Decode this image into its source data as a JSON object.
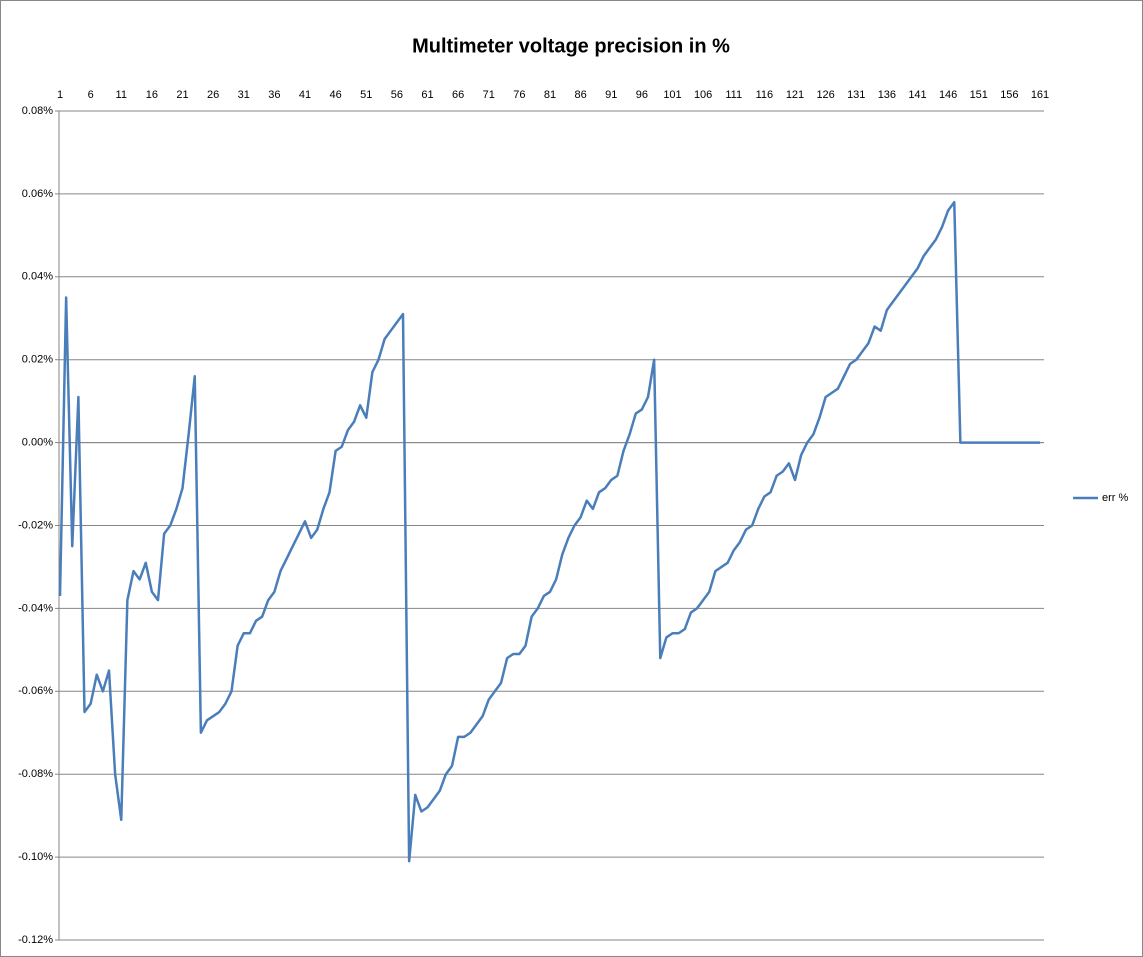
{
  "chart_data": {
    "type": "line",
    "title": "Multimeter voltage precision in %",
    "categories": [
      "1",
      null,
      null,
      null,
      null,
      "6",
      null,
      null,
      null,
      null,
      "11",
      null,
      null,
      null,
      null,
      "16",
      null,
      null,
      null,
      null,
      "21",
      null,
      null,
      null,
      null,
      "26",
      null,
      null,
      null,
      null,
      "31",
      null,
      null,
      null,
      null,
      "36",
      null,
      null,
      null,
      null,
      "41",
      null,
      null,
      null,
      null,
      "46",
      null,
      null,
      null,
      null,
      "51",
      null,
      null,
      null,
      null,
      "56",
      null,
      null,
      null,
      null,
      "61",
      null,
      null,
      null,
      null,
      "66",
      null,
      null,
      null,
      null,
      "71",
      null,
      null,
      null,
      null,
      "76",
      null,
      null,
      null,
      null,
      "81",
      null,
      null,
      null,
      null,
      "86",
      null,
      null,
      null,
      null,
      "91",
      null,
      null,
      null,
      null,
      "96",
      null,
      null,
      null,
      null,
      "101",
      null,
      null,
      null,
      null,
      "106",
      null,
      null,
      null,
      null,
      "111",
      null,
      null,
      null,
      null,
      "116",
      null,
      null,
      null,
      null,
      "121",
      null,
      null,
      null,
      null,
      "126",
      null,
      null,
      null,
      null,
      "131",
      null,
      null,
      null,
      null,
      "136",
      null,
      null,
      null,
      null,
      "141",
      null,
      null,
      null,
      null,
      "146",
      null,
      null,
      null,
      null,
      "151",
      null,
      null,
      null,
      null,
      "156",
      null,
      null,
      null,
      null,
      "161"
    ],
    "series": [
      {
        "name": "err %",
        "color": "#4a7ebb",
        "values": [
          -0.037,
          0.035,
          -0.025,
          0.011,
          -0.065,
          -0.063,
          -0.056,
          -0.06,
          -0.055,
          -0.08,
          -0.091,
          -0.038,
          -0.031,
          -0.033,
          -0.029,
          -0.036,
          -0.038,
          -0.022,
          -0.02,
          -0.016,
          -0.011,
          0.002,
          0.016,
          -0.07,
          -0.067,
          -0.066,
          -0.065,
          -0.063,
          -0.06,
          -0.049,
          -0.046,
          -0.046,
          -0.043,
          -0.042,
          -0.038,
          -0.036,
          -0.031,
          -0.028,
          -0.025,
          -0.022,
          -0.019,
          -0.023,
          -0.021,
          -0.016,
          -0.012,
          -0.002,
          -0.001,
          0.003,
          0.005,
          0.009,
          0.006,
          0.017,
          0.02,
          0.025,
          0.027,
          0.029,
          0.031,
          -0.101,
          -0.085,
          -0.089,
          -0.088,
          -0.086,
          -0.084,
          -0.08,
          -0.078,
          -0.071,
          -0.071,
          -0.07,
          -0.068,
          -0.066,
          -0.062,
          -0.06,
          -0.058,
          -0.052,
          -0.051,
          -0.051,
          -0.049,
          -0.042,
          -0.04,
          -0.037,
          -0.036,
          -0.033,
          -0.027,
          -0.023,
          -0.02,
          -0.018,
          -0.014,
          -0.016,
          -0.012,
          -0.011,
          -0.009,
          -0.008,
          -0.002,
          0.002,
          0.007,
          0.008,
          0.011,
          0.02,
          -0.052,
          -0.047,
          -0.046,
          -0.046,
          -0.045,
          -0.041,
          -0.04,
          -0.038,
          -0.036,
          -0.031,
          -0.03,
          -0.029,
          -0.026,
          -0.024,
          -0.021,
          -0.02,
          -0.016,
          -0.013,
          -0.012,
          -0.008,
          -0.007,
          -0.005,
          -0.009,
          -0.003,
          0.0,
          0.002,
          0.006,
          0.011,
          0.012,
          0.013,
          0.016,
          0.019,
          0.02,
          0.022,
          0.024,
          0.028,
          0.027,
          0.032,
          0.034,
          0.036,
          0.038,
          0.04,
          0.042,
          0.045,
          0.047,
          0.049,
          0.052,
          0.056,
          0.058,
          0,
          0,
          0,
          0,
          0,
          0,
          0,
          0,
          0,
          0,
          0,
          0,
          0,
          0
        ]
      }
    ],
    "ylim": [
      -0.12,
      0.08
    ],
    "yticks": [
      {
        "value": -0.12,
        "label": "-0.12%"
      },
      {
        "value": -0.1,
        "label": "-0.10%"
      },
      {
        "value": -0.08,
        "label": "-0.08%"
      },
      {
        "value": -0.06,
        "label": "-0.06%"
      },
      {
        "value": -0.04,
        "label": "-0.04%"
      },
      {
        "value": -0.02,
        "label": "-0.02%"
      },
      {
        "value": 0,
        "label": "0.00%"
      },
      {
        "value": 0.02,
        "label": "0.02%"
      },
      {
        "value": 0.04,
        "label": "0.04%"
      },
      {
        "value": 0.06,
        "label": "0.06%"
      },
      {
        "value": 0.08,
        "label": "0.08%"
      }
    ],
    "grid": true,
    "legend": "right"
  }
}
